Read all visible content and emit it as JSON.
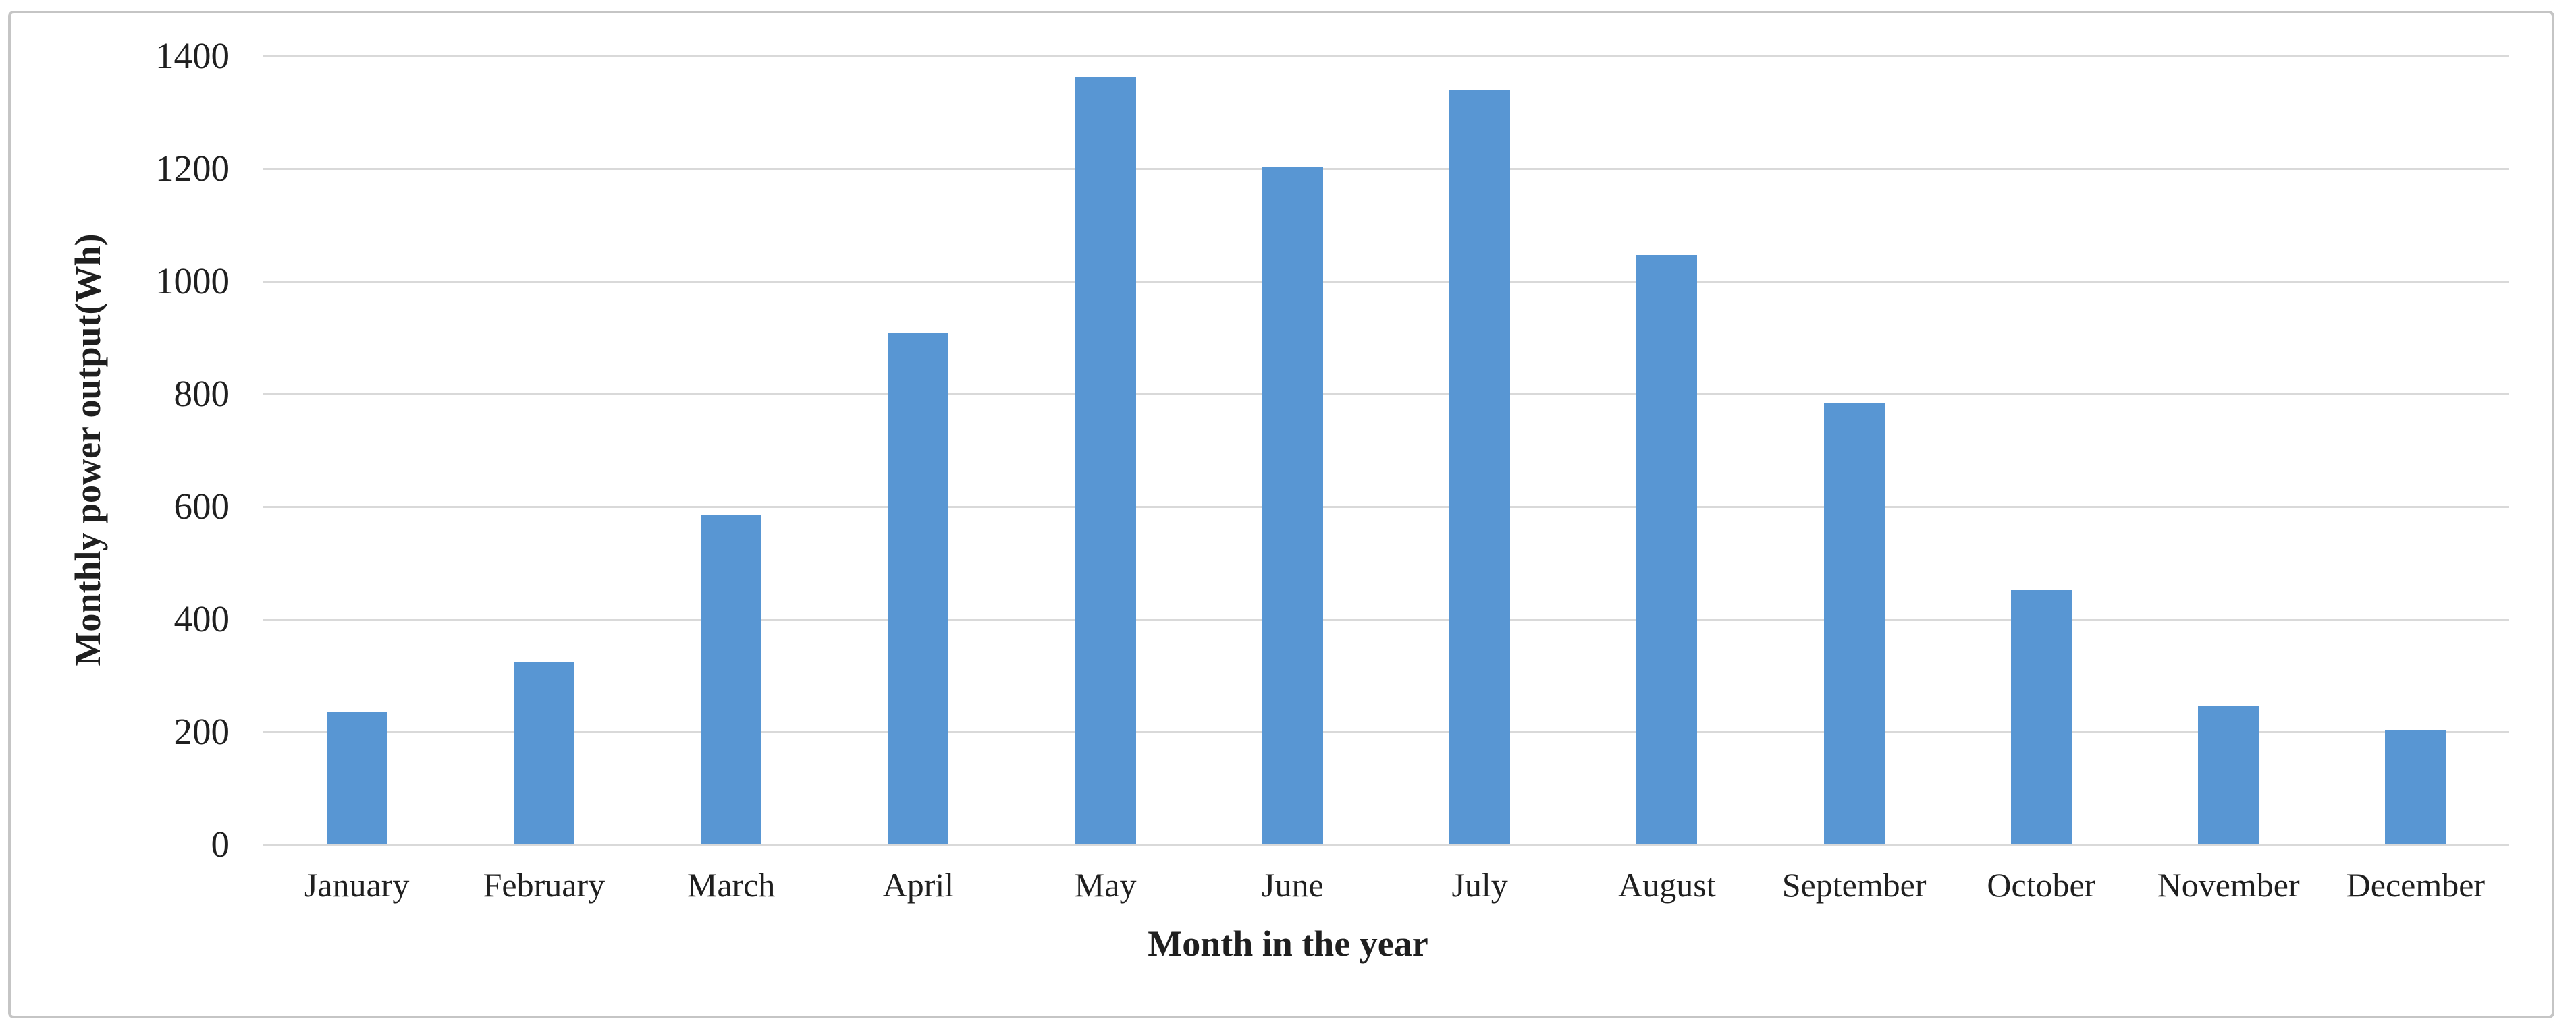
{
  "chart_data": {
    "type": "bar",
    "title": "",
    "xlabel": "Month in the year",
    "ylabel": "Monthly power output(Wh)",
    "categories": [
      "January",
      "February",
      "March",
      "April",
      "May",
      "June",
      "July",
      "August",
      "September",
      "October",
      "November",
      "December"
    ],
    "values": [
      235,
      323,
      586,
      908,
      1363,
      1203,
      1340,
      1047,
      785,
      452,
      246,
      203
    ],
    "yticks": [
      0,
      200,
      400,
      600,
      800,
      1000,
      1200,
      1400
    ],
    "ylim": [
      0,
      1400
    ],
    "grid": true,
    "legend_position": "none",
    "colors": {
      "bar": "#5896D3",
      "gridline": "#D9D9D9",
      "text": "#1F1F1F",
      "frame_border": "#C5C5C5",
      "background": "#FFFFFF"
    }
  }
}
